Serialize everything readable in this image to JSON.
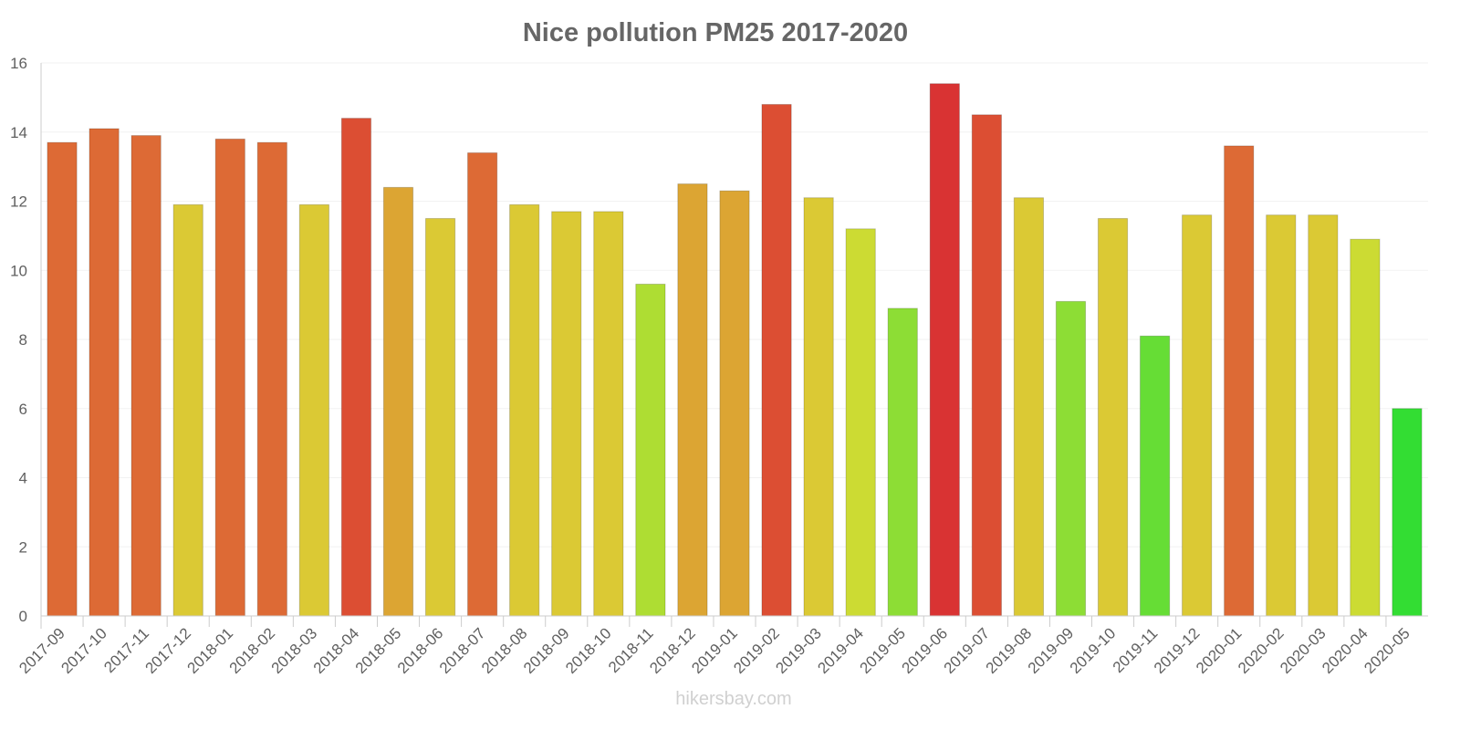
{
  "chart_data": {
    "type": "bar",
    "title": "Nice pollution PM25 2017-2020",
    "xlabel": "",
    "ylabel": "",
    "ylim": [
      0,
      16
    ],
    "yticks": [
      "0",
      "2",
      "4",
      "6",
      "8",
      "10",
      "12",
      "14",
      "16"
    ],
    "categories": [
      "2017-09",
      "2017-10",
      "2017-11",
      "2017-12",
      "2018-01",
      "2018-02",
      "2018-03",
      "2018-04",
      "2018-05",
      "2018-06",
      "2018-07",
      "2018-08",
      "2018-09",
      "2018-10",
      "2018-11",
      "2018-12",
      "2019-01",
      "2019-02",
      "2019-03",
      "2019-04",
      "2019-05",
      "2019-06",
      "2019-07",
      "2019-08",
      "2019-09",
      "2019-10",
      "2019-11",
      "2019-12",
      "2020-01",
      "2020-02",
      "2020-03",
      "2020-04",
      "2020-05"
    ],
    "values": [
      13.7,
      14.1,
      13.9,
      11.9,
      13.8,
      13.7,
      11.9,
      14.4,
      12.4,
      11.5,
      13.4,
      11.9,
      11.7,
      11.7,
      9.6,
      12.5,
      12.3,
      14.8,
      12.1,
      11.2,
      8.9,
      15.4,
      14.5,
      12.1,
      9.1,
      11.5,
      8.1,
      11.6,
      13.6,
      11.6,
      11.6,
      10.9,
      6.0
    ],
    "colors": [
      "#dd6a35",
      "#dd6a35",
      "#dd6a35",
      "#dbc934",
      "#dd6a35",
      "#dd6a35",
      "#dbc934",
      "#dc4e33",
      "#dca533",
      "#dbc934",
      "#dd6a35",
      "#dbc934",
      "#dbc934",
      "#dbc934",
      "#aedd33",
      "#dca533",
      "#dca533",
      "#dc4e33",
      "#dbc934",
      "#ccdb33",
      "#8ddd35",
      "#d93333",
      "#dc4e33",
      "#dbc934",
      "#8ddd35",
      "#dbc934",
      "#66dd35",
      "#dbc934",
      "#dd6a35",
      "#dbc934",
      "#dbc934",
      "#ccdb33",
      "#33dd33"
    ],
    "grid": true,
    "legend": "none"
  },
  "watermark": "hikersbay.com"
}
